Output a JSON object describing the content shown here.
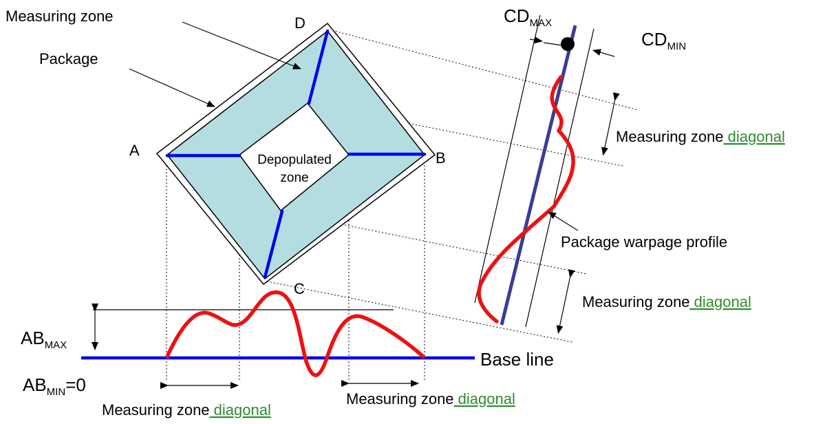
{
  "labels": {
    "measuring_zone": "Measuring zone",
    "package": "Package",
    "depopulated_1": "Depopulated",
    "depopulated_2": "zone",
    "corner_a": "A",
    "corner_b": "B",
    "corner_c": "C",
    "corner_d": "D",
    "cd": "CD",
    "max_sub": "MAX",
    "min_sub": "MIN",
    "ab": "AB",
    "ab_min_suffix": "=0",
    "base_line": "Base line",
    "warpage_profile": "Package warpage profile",
    "mz_prefix": "Measuring zone",
    "mz_diagonal": " diagonal"
  },
  "colors": {
    "measuring_zone_fill": "#b4dde1",
    "blue_line": "#0000ee",
    "profile_red": "#ee1111",
    "dark_blue_line": "#3b3b9a",
    "diagonal_green": "#2e8b2e"
  }
}
